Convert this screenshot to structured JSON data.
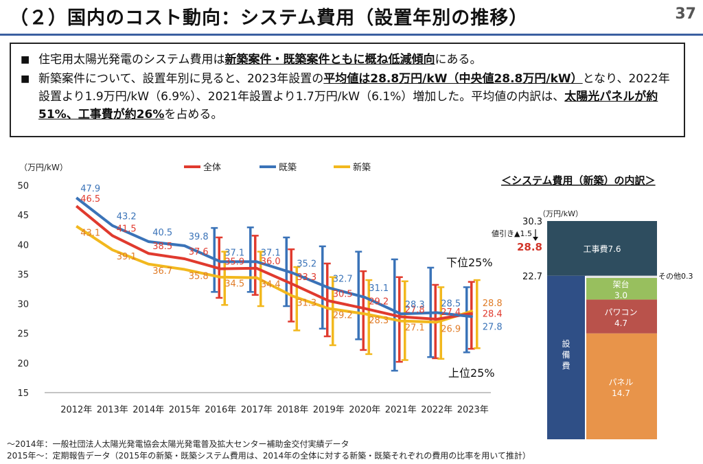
{
  "header": {
    "title": "（２）国内のコスト動向：システム費用（設置年別の推移）",
    "page_number": "37"
  },
  "summary": {
    "bullet_mark": "■",
    "b1": {
      "t1": "住宅用太陽光発電のシステム費用は",
      "b1": "新築案件・既築案件ともに概ね低減傾向",
      "t2": "にある。"
    },
    "b2": {
      "t1": "新築案件について、設置年別に見ると、2023年設置の",
      "b1": "平均値は28.8万円/kW（中央値28.8万円/kW）",
      "t2": "となり、2022年設置より1.9万円/kW（6.9%）、2021年設置より1.7万円/kW（6.1%）増加した。平均値の内訳は、",
      "b2": "太陽光パネルが約51%、工事費が約26%",
      "t3": "を占める。"
    }
  },
  "chart_data": [
    {
      "type": "line",
      "ylabel": "（万円/kW）",
      "ylim": [
        15,
        50
      ],
      "yticks": [
        "15",
        "20",
        "25",
        "30",
        "35",
        "40",
        "45",
        "50"
      ],
      "categories": [
        "2012年",
        "2013年",
        "2014年",
        "2015年",
        "2016年",
        "2017年",
        "2018年",
        "2019年",
        "2020年",
        "2021年",
        "2022年",
        "2023年"
      ],
      "series": [
        {
          "name": "全体",
          "color": "#e03a2e",
          "values": [
            46.5,
            41.5,
            38.5,
            37.6,
            35.9,
            36.0,
            33.3,
            30.5,
            29.2,
            27.8,
            27.4,
            28.4
          ],
          "labels": [
            "46.5",
            "41.5",
            "38.5",
            "37.6",
            "35.9",
            "36.0",
            "33.3",
            "30.5",
            "29.2",
            "27.8",
            "27.4",
            "28.4"
          ]
        },
        {
          "name": "既築",
          "color": "#3a73b8",
          "values": [
            47.9,
            43.2,
            40.5,
            39.8,
            37.1,
            37.1,
            35.2,
            32.7,
            31.1,
            28.3,
            28.5,
            27.8
          ],
          "labels": [
            "47.9",
            "43.2",
            "40.5",
            "39.8",
            "37.1",
            "37.1",
            "35.2",
            "32.7",
            "31.1",
            "28.3",
            "28.5",
            "27.8"
          ]
        },
        {
          "name": "新築",
          "color": "#f2b81e",
          "label_color": "#e07b26",
          "values": [
            43.1,
            39.1,
            36.7,
            35.8,
            34.5,
            34.4,
            31.3,
            29.2,
            28.3,
            27.1,
            26.9,
            28.8
          ],
          "labels": [
            "43.1",
            "39.1",
            "36.7",
            "35.8",
            "34.5",
            "34.4",
            "31.3",
            "29.2",
            "28.3",
            "27.1",
            "26.9",
            "28.8"
          ]
        }
      ],
      "error_ranges": {
        "全体": [
          null,
          null,
          null,
          null,
          [
            31,
            41.2
          ],
          [
            31.5,
            41.5
          ],
          [
            27,
            39.2
          ],
          [
            24.5,
            36.8
          ],
          [
            22.2,
            35.5
          ],
          [
            20.2,
            34.5
          ],
          [
            20.8,
            33.2
          ],
          [
            22.4,
            33.7
          ]
        ],
        "既築": [
          null,
          null,
          null,
          null,
          [
            32,
            42.8
          ],
          [
            32,
            42.9
          ],
          [
            29.6,
            41.2
          ],
          [
            25.8,
            39.7
          ],
          [
            24,
            38.8
          ],
          [
            18.7,
            37.5
          ],
          [
            21,
            36.1
          ],
          [
            21.8,
            32.8
          ]
        ],
        "新築": [
          null,
          null,
          null,
          null,
          [
            29.8,
            38.8
          ],
          [
            29.6,
            38.8
          ],
          [
            25.5,
            36.2
          ],
          [
            23,
            34.5
          ],
          [
            21.5,
            34
          ],
          [
            20.5,
            33.8
          ],
          [
            20.7,
            32.8
          ],
          [
            22.5,
            34
          ]
        ]
      },
      "annotations": {
        "upper": "下位25%",
        "lower": "上位25%"
      }
    },
    {
      "type": "bar",
      "title": "＜システム費用（新築）の内訳＞",
      "unit": "（万円/kW）",
      "total_before": "30.3",
      "discount_label": "値引き▲1.5",
      "total": "28.8",
      "equipment_total": "22.7",
      "equipment_label": "設備費",
      "segments": [
        {
          "name": "パネル",
          "value": 14.7,
          "value_label": "14.7",
          "color": "#e8944a"
        },
        {
          "name": "パワコン",
          "value": 4.7,
          "value_label": "4.7",
          "color": "#b9524b"
        },
        {
          "name": "架台",
          "value": 3.0,
          "value_label": "3.0",
          "color": "#98bf5e"
        },
        {
          "name": "その他",
          "value": 0.3,
          "value_label": "0.3",
          "color": "#e6e6e6"
        }
      ],
      "construction": {
        "name": "工事費",
        "value": 7.6,
        "value_label": "7.6",
        "color": "#2e4d5f"
      },
      "equipment_color": "#2f4f86"
    }
  ],
  "footnotes": [
    "～2014年：一般社団法人太陽光発電協会太陽光発電普及拡大センター補助金交付実績データ",
    "2015年～：定期報告データ（2015年の新築・既築システム費用は、2014年の全体に対する新築・既築それぞれの費用の比率を用いて推計）"
  ]
}
